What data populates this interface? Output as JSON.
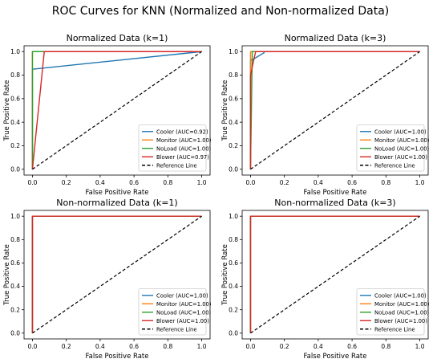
{
  "title": "ROC Curves for KNN (Normalized and Non-normalized Data)",
  "chart_data": [
    {
      "type": "line",
      "title": "Normalized Data (k=1)",
      "xlabel": "False Positive Rate",
      "ylabel": "True Positive Rate",
      "xlim": [
        0.0,
        1.0
      ],
      "ylim": [
        0.0,
        1.0
      ],
      "xticks": [
        "0.0",
        "0.2",
        "0.4",
        "0.6",
        "0.8",
        "1.0"
      ],
      "yticks": [
        "0.0",
        "0.2",
        "0.4",
        "0.6",
        "0.8",
        "1.0"
      ],
      "grid": false,
      "legend_position": "lower right",
      "series": [
        {
          "name": "Cooler (AUC=0.92)",
          "color": "#1f77b4",
          "x": [
            0.0,
            0.0,
            1.0
          ],
          "y": [
            0.0,
            0.85,
            1.0
          ]
        },
        {
          "name": "Monitor (AUC=1.00)",
          "color": "#ff7f0e",
          "x": [
            0.0,
            0.0,
            1.0
          ],
          "y": [
            0.0,
            1.0,
            1.0
          ]
        },
        {
          "name": "NoLoad (AUC=1.00)",
          "color": "#2ca02c",
          "x": [
            0.0,
            0.0,
            1.0
          ],
          "y": [
            0.0,
            1.0,
            1.0
          ]
        },
        {
          "name": "Blower (AUC=0.97)",
          "color": "#d62728",
          "x": [
            0.0,
            0.07,
            1.0
          ],
          "y": [
            0.0,
            1.0,
            1.0
          ]
        }
      ],
      "reference": {
        "name": "Reference Line",
        "x": [
          0.0,
          1.0
        ],
        "y": [
          0.0,
          1.0
        ]
      }
    },
    {
      "type": "line",
      "title": "Normalized Data (k=3)",
      "xlabel": "False Positive Rate",
      "ylabel": "True Positive Rate",
      "xlim": [
        0.0,
        1.0
      ],
      "ylim": [
        0.0,
        1.0
      ],
      "xticks": [
        "0.0",
        "0.2",
        "0.4",
        "0.6",
        "0.8",
        "1.0"
      ],
      "yticks": [
        "0.0",
        "0.2",
        "0.4",
        "0.6",
        "0.8",
        "1.0"
      ],
      "grid": false,
      "legend_position": "lower right",
      "series": [
        {
          "name": "Cooler (AUC=1.00)",
          "color": "#1f77b4",
          "x": [
            0.0,
            0.0,
            0.01,
            0.08,
            0.08,
            1.0
          ],
          "y": [
            0.0,
            0.93,
            0.93,
            0.99,
            1.0,
            1.0
          ]
        },
        {
          "name": "Monitor (AUC=1.00)",
          "color": "#ff7f0e",
          "x": [
            0.0,
            0.0,
            1.0
          ],
          "y": [
            0.0,
            1.0,
            1.0
          ]
        },
        {
          "name": "NoLoad (AUC=1.00)",
          "color": "#2ca02c",
          "x": [
            0.0,
            0.01,
            0.01,
            1.0
          ],
          "y": [
            0.0,
            0.95,
            1.0,
            1.0
          ]
        },
        {
          "name": "Blower (AUC=1.00)",
          "color": "#d62728",
          "x": [
            0.0,
            0.0,
            0.03,
            1.0
          ],
          "y": [
            0.0,
            0.8,
            1.0,
            1.0
          ]
        }
      ],
      "reference": {
        "name": "Reference Line",
        "x": [
          0.0,
          1.0
        ],
        "y": [
          0.0,
          1.0
        ]
      }
    },
    {
      "type": "line",
      "title": "Non-normalized Data (k=1)",
      "xlabel": "False Positive Rate",
      "ylabel": "True Positive Rate",
      "xlim": [
        0.0,
        1.0
      ],
      "ylim": [
        0.0,
        1.0
      ],
      "xticks": [
        "0.0",
        "0.2",
        "0.4",
        "0.6",
        "0.8",
        "1.0"
      ],
      "yticks": [
        "0.0",
        "0.2",
        "0.4",
        "0.6",
        "0.8",
        "1.0"
      ],
      "grid": false,
      "legend_position": "lower right",
      "series": [
        {
          "name": "Cooler (AUC=1.00)",
          "color": "#1f77b4",
          "x": [
            0.0,
            0.0,
            1.0
          ],
          "y": [
            0.0,
            1.0,
            1.0
          ]
        },
        {
          "name": "Monitor (AUC=1.00)",
          "color": "#ff7f0e",
          "x": [
            0.0,
            0.0,
            1.0
          ],
          "y": [
            0.0,
            1.0,
            1.0
          ]
        },
        {
          "name": "NoLoad (AUC=1.00)",
          "color": "#2ca02c",
          "x": [
            0.0,
            0.0,
            1.0
          ],
          "y": [
            0.0,
            1.0,
            1.0
          ]
        },
        {
          "name": "Blower (AUC=1.00)",
          "color": "#d62728",
          "x": [
            0.0,
            0.0,
            1.0
          ],
          "y": [
            0.0,
            1.0,
            1.0
          ]
        }
      ],
      "reference": {
        "name": "Reference Line",
        "x": [
          0.0,
          1.0
        ],
        "y": [
          0.0,
          1.0
        ]
      }
    },
    {
      "type": "line",
      "title": "Non-normalized Data (k=3)",
      "xlabel": "False Positive Rate",
      "ylabel": "True Positive Rate",
      "xlim": [
        0.0,
        1.0
      ],
      "ylim": [
        0.0,
        1.0
      ],
      "xticks": [
        "0.0",
        "0.2",
        "0.4",
        "0.6",
        "0.8",
        "1.0"
      ],
      "yticks": [
        "0.0",
        "0.2",
        "0.4",
        "0.6",
        "0.8",
        "1.0"
      ],
      "grid": false,
      "legend_position": "lower right",
      "series": [
        {
          "name": "Cooler (AUC=1.00)",
          "color": "#1f77b4",
          "x": [
            0.0,
            0.0,
            1.0
          ],
          "y": [
            0.0,
            1.0,
            1.0
          ]
        },
        {
          "name": "Monitor (AUC=1.00)",
          "color": "#ff7f0e",
          "x": [
            0.0,
            0.0,
            1.0
          ],
          "y": [
            0.0,
            1.0,
            1.0
          ]
        },
        {
          "name": "NoLoad (AUC=1.00)",
          "color": "#2ca02c",
          "x": [
            0.0,
            0.0,
            1.0
          ],
          "y": [
            0.0,
            1.0,
            1.0
          ]
        },
        {
          "name": "Blower (AUC=1.00)",
          "color": "#d62728",
          "x": [
            0.0,
            0.0,
            1.0
          ],
          "y": [
            0.0,
            1.0,
            1.0
          ]
        }
      ],
      "reference": {
        "name": "Reference Line",
        "x": [
          0.0,
          1.0
        ],
        "y": [
          0.0,
          1.0
        ]
      }
    }
  ]
}
